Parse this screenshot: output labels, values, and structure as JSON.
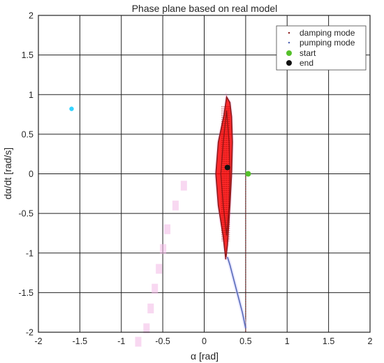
{
  "chart_data": {
    "type": "line",
    "title": "Phase plane based on real model",
    "xlabel": "α [rad]",
    "ylabel": "dα/dt [rad/s]",
    "xlim": [
      -2,
      2
    ],
    "ylim": [
      -2,
      2
    ],
    "xticks": [
      -2,
      -1.5,
      -1,
      -0.5,
      0,
      0.5,
      1,
      1.5,
      2
    ],
    "yticks": [
      -2,
      -1.5,
      -1,
      -0.5,
      0,
      0.5,
      1,
      1.5,
      2
    ],
    "xtick_labels": [
      "-2",
      "-1.5",
      "-1",
      "-0.5",
      "0",
      "0.5",
      "1",
      "1.5",
      "2"
    ],
    "ytick_labels": [
      "-2",
      "-1.5",
      "-1",
      "-0.5",
      "0",
      "0.5",
      "1",
      "1.5",
      "2"
    ],
    "grid": true,
    "legend_position": "top-right",
    "legend": [
      "damping mode",
      "pumping mode",
      "start",
      "end"
    ],
    "colors": {
      "damping": "#ff0000",
      "damping_outline": "#8b1a1a",
      "pumping": "#00c8ff",
      "pumping_line": "#4a5fb0",
      "start": "#55c02a",
      "end": "#111111",
      "grid": "#222222"
    },
    "series": [
      {
        "name": "damping mode",
        "kind": "dotted-line",
        "x": [
          0.5,
          0.5,
          0.5
        ],
        "y": [
          0.0,
          -1.0,
          -2.0
        ]
      },
      {
        "name": "damping mode",
        "kind": "outer-orbit",
        "x": [
          0.27,
          0.24,
          0.17,
          0.14,
          0.17,
          0.23,
          0.26,
          0.28,
          0.31,
          0.33,
          0.34,
          0.33,
          0.31,
          0.27
        ],
        "y": [
          0.97,
          0.75,
          0.4,
          0.0,
          -0.4,
          -0.8,
          -1.08,
          -0.9,
          -0.4,
          0.0,
          0.4,
          0.72,
          0.9,
          0.97
        ]
      },
      {
        "name": "damping mode",
        "kind": "inner-orbit",
        "x": [
          0.27,
          0.23,
          0.2,
          0.23,
          0.27,
          0.3,
          0.31,
          0.3,
          0.27
        ],
        "y": [
          0.8,
          0.4,
          0.0,
          -0.4,
          -0.78,
          -0.4,
          0.0,
          0.4,
          0.8
        ]
      },
      {
        "name": "pumping mode",
        "kind": "line",
        "x": [
          0.5,
          0.46,
          0.41,
          0.36,
          0.31,
          0.28
        ],
        "y": [
          -1.95,
          -1.75,
          -1.55,
          -1.35,
          -1.15,
          -1.05
        ]
      },
      {
        "name": "pumping mode",
        "kind": "isolated-point",
        "x": [
          -1.6
        ],
        "y": [
          0.82
        ]
      },
      {
        "name": "start",
        "kind": "marker",
        "x": [
          0.53
        ],
        "y": [
          0.0
        ]
      },
      {
        "name": "end",
        "kind": "marker",
        "x": [
          0.28
        ],
        "y": [
          0.08
        ]
      }
    ],
    "residual_marks": [
      {
        "x": -0.25,
        "y": -0.15
      },
      {
        "x": -0.35,
        "y": -0.4
      },
      {
        "x": -0.45,
        "y": -0.7
      },
      {
        "x": -0.5,
        "y": -0.95
      },
      {
        "x": -0.55,
        "y": -1.2
      },
      {
        "x": -0.6,
        "y": -1.45
      },
      {
        "x": -0.65,
        "y": -1.7
      },
      {
        "x": -0.7,
        "y": -1.95
      },
      {
        "x": -0.8,
        "y": -2.12
      },
      {
        "x": -0.9,
        "y": -2.3
      }
    ]
  }
}
